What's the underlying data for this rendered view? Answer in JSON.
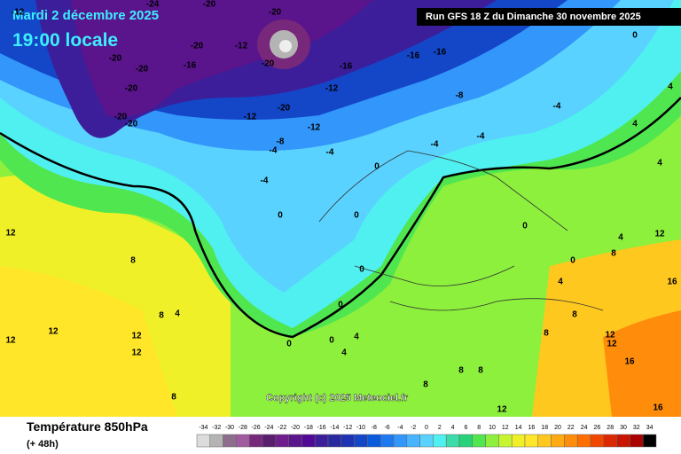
{
  "header": {
    "date": "Mardi 2 décembre 2025",
    "time": "19:00 locale",
    "run": "Run GFS 18 Z du Dimanche 30 novembre 2025"
  },
  "copyright": "Copyright (c) 2025 Meteociel.fr",
  "footer": {
    "title": "Température 850hPa",
    "lead": "(+ 48h)"
  },
  "legend": {
    "values": [
      -34,
      -32,
      -30,
      -28,
      -26,
      -24,
      -22,
      -20,
      -18,
      -16,
      -14,
      -12,
      -10,
      -8,
      -6,
      -4,
      -2,
      0,
      2,
      4,
      6,
      8,
      10,
      12,
      14,
      16,
      18,
      20,
      22,
      24,
      26,
      28,
      30,
      32,
      34
    ],
    "colors": [
      "#dcdcdc",
      "#b4b4b4",
      "#8c6e8c",
      "#a05aa0",
      "#78287a",
      "#5a1e6e",
      "#6e1e8c",
      "#5a148c",
      "#500a96",
      "#3c1e9b",
      "#2828a0",
      "#1e32b4",
      "#1446c8",
      "#0a5adc",
      "#1e78f0",
      "#3296fa",
      "#46b4ff",
      "#5ad2ff",
      "#50f0f0",
      "#3cdcaa",
      "#28d278",
      "#50e650",
      "#8cf03c",
      "#c8f532",
      "#f0f028",
      "#ffe628",
      "#ffc81e",
      "#ffaa14",
      "#ff8c0a",
      "#ff6e00",
      "#f04600",
      "#dc2800",
      "#c81400",
      "#aa0000",
      "#000000"
    ]
  },
  "map_labels": [
    -12,
    -24,
    -20,
    -20,
    -20,
    -20,
    -20,
    -16,
    -12,
    -20,
    -16,
    -16,
    -16,
    -12,
    -8,
    -20,
    -20,
    -20,
    -12,
    -20,
    -12,
    -8,
    -4,
    -4,
    -4,
    -4,
    -4,
    -4,
    0,
    4,
    4,
    0,
    0,
    0,
    0,
    0,
    0,
    0,
    0,
    0,
    4,
    4,
    4,
    4,
    4,
    8,
    4,
    8,
    8,
    8,
    8,
    8,
    8,
    8,
    8,
    12,
    12,
    12,
    12,
    12,
    12,
    12,
    12,
    12,
    16,
    16,
    16
  ]
}
